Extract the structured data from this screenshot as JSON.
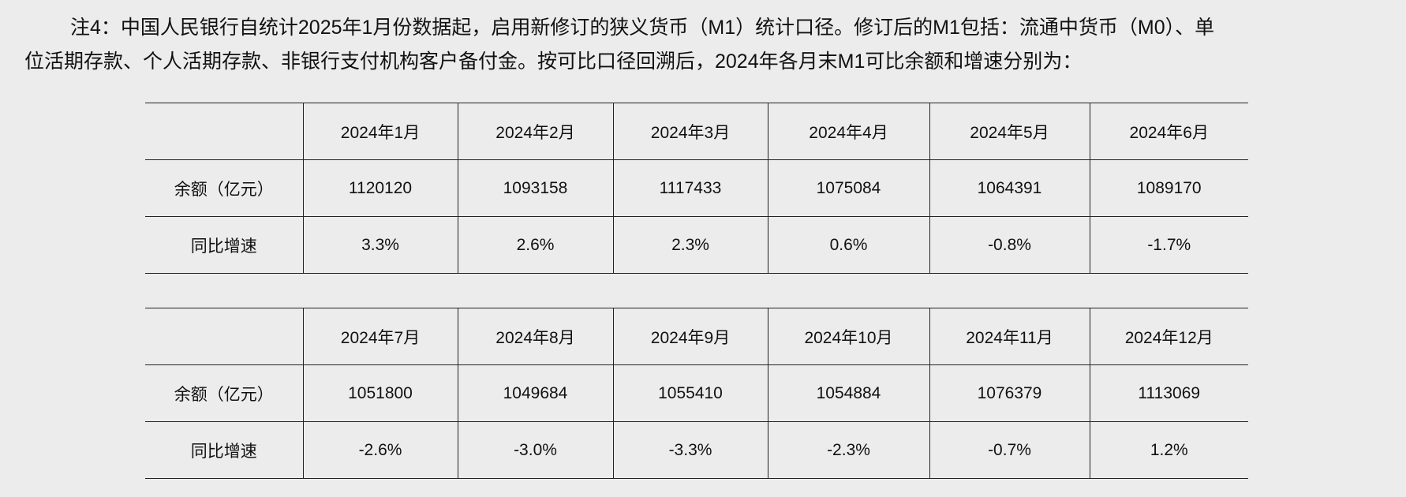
{
  "note": {
    "lines": [
      "注4：中国人民银行自统计2025年1月份数据起，启用新修订的狭义货币（M1）统计口径。修订后的M1包括：流通中货币（M0）、单",
      "位活期存款、个人活期存款、非银行支付机构客户备付金。按可比口径回溯后，2024年各月末M1可比余额和增速分别为："
    ]
  },
  "tables": [
    {
      "header": [
        "2024年1月",
        "2024年2月",
        "2024年3月",
        "2024年4月",
        "2024年5月",
        "2024年6月"
      ],
      "rows": [
        [
          "余额（亿元）",
          "1120120",
          "1093158",
          "1117433",
          "1075084",
          "1064391",
          "1089170"
        ],
        [
          "同比增速",
          "3.3%",
          "2.6%",
          "2.3%",
          "0.6%",
          "-0.8%",
          "-1.7%"
        ]
      ]
    },
    {
      "header": [
        "2024年7月",
        "2024年8月",
        "2024年9月",
        "2024年10月",
        "2024年11月",
        "2024年12月"
      ],
      "rows": [
        [
          "余额（亿元）",
          "1051800",
          "1049684",
          "1055410",
          "1054884",
          "1076379",
          "1113069"
        ],
        [
          "同比增速",
          "-2.6%",
          "-3.0%",
          "-3.3%",
          "-2.3%",
          "-0.7%",
          "1.2%"
        ]
      ]
    }
  ]
}
